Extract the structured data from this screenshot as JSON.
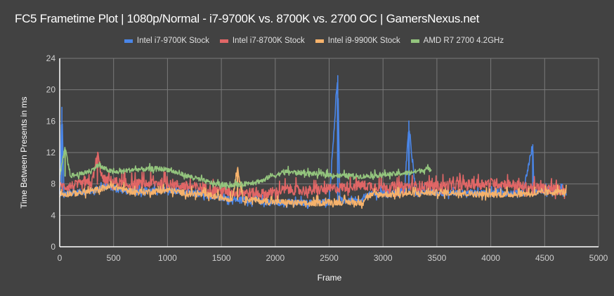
{
  "chart_data": {
    "type": "line",
    "title": "FC5 Frametime Plot | 1080p/Normal - i7-9700K vs. 8700K vs. 2700 OC | GamersNexus.net",
    "xlabel": "Frame",
    "ylabel": "Time Between Presents in ms",
    "xlim": [
      0,
      5000
    ],
    "ylim": [
      0,
      24
    ],
    "xticks": [
      0,
      500,
      1000,
      1500,
      2000,
      2500,
      3000,
      3500,
      4000,
      4500,
      5000
    ],
    "yticks": [
      0,
      4,
      8,
      12,
      16,
      20,
      24
    ],
    "grid": true,
    "legend_position": "top",
    "series": [
      {
        "name": "Intel i7-9700K Stock",
        "color": "#4a86e8",
        "x": [
          0,
          20,
          40,
          100,
          200,
          300,
          350,
          400,
          500,
          600,
          700,
          800,
          900,
          1000,
          1100,
          1200,
          1300,
          1400,
          1500,
          1600,
          1700,
          1800,
          1900,
          2000,
          2100,
          2200,
          2300,
          2400,
          2500,
          2580,
          2600,
          2700,
          2800,
          2850,
          2900,
          3000,
          3100,
          3200,
          3240,
          3300,
          3400,
          3500,
          3600,
          3700,
          3800,
          3900,
          4000,
          4100,
          4200,
          4300,
          4390,
          4400,
          4500,
          4600,
          4700
        ],
        "values": [
          6.5,
          17.5,
          6.5,
          6.8,
          6.9,
          7.0,
          7.4,
          7.6,
          7.5,
          7.0,
          7.0,
          7.1,
          7.0,
          7.2,
          6.9,
          6.7,
          6.6,
          6.4,
          6.2,
          6.0,
          5.9,
          5.8,
          5.6,
          5.5,
          5.6,
          5.5,
          5.5,
          5.6,
          5.7,
          21.8,
          5.8,
          5.7,
          5.7,
          6.5,
          6.6,
          6.7,
          6.8,
          6.9,
          15.6,
          6.9,
          6.9,
          6.8,
          6.8,
          6.8,
          6.8,
          6.8,
          6.8,
          6.8,
          6.8,
          6.9,
          13.0,
          6.9,
          7.0,
          7.0,
          7.0
        ]
      },
      {
        "name": "Intel i7-8700K Stock",
        "color": "#e06666",
        "x": [
          0,
          100,
          200,
          300,
          350,
          400,
          500,
          600,
          700,
          800,
          900,
          1000,
          1100,
          1200,
          1300,
          1400,
          1500,
          1600,
          1700,
          1800,
          1900,
          2000,
          2100,
          2200,
          2300,
          2400,
          2500,
          2600,
          2700,
          2800,
          2900,
          3000,
          3100,
          3200,
          3300,
          3400,
          3500,
          3600,
          3700,
          3800,
          3900,
          4000,
          4100,
          4200,
          4300,
          4400,
          4500,
          4600,
          4700
        ],
        "values": [
          7.5,
          7.6,
          7.8,
          8.0,
          11.6,
          8.4,
          8.2,
          7.8,
          7.8,
          7.9,
          8.0,
          8.0,
          7.7,
          7.5,
          7.4,
          7.2,
          7.0,
          6.8,
          6.8,
          6.7,
          6.6,
          6.8,
          7.2,
          7.1,
          7.0,
          7.1,
          7.2,
          7.4,
          7.6,
          7.7,
          7.6,
          7.5,
          7.5,
          7.5,
          7.6,
          7.6,
          7.6,
          7.7,
          7.8,
          7.8,
          7.9,
          8.0,
          7.9,
          7.8,
          7.5,
          7.4,
          7.3,
          7.2,
          7.1
        ]
      },
      {
        "name": "Intel i9-9900K Stock",
        "color": "#f6b26b",
        "x": [
          0,
          100,
          200,
          300,
          400,
          500,
          600,
          700,
          800,
          900,
          1000,
          1100,
          1200,
          1300,
          1400,
          1500,
          1600,
          1650,
          1700,
          1800,
          1900,
          2000,
          2100,
          2200,
          2300,
          2400,
          2500,
          2600,
          2700,
          2800,
          2850,
          2900,
          3000,
          3100,
          3200,
          3300,
          3400,
          3500,
          3600,
          3700,
          3800,
          3900,
          4000,
          4100,
          4200,
          4300,
          4400,
          4500,
          4600,
          4700
        ],
        "values": [
          6.6,
          6.7,
          6.8,
          7.0,
          7.4,
          7.6,
          7.2,
          6.9,
          6.9,
          7.0,
          7.1,
          6.9,
          6.7,
          6.6,
          6.4,
          6.2,
          6.0,
          10.0,
          6.0,
          5.9,
          5.7,
          5.6,
          5.6,
          5.5,
          5.4,
          5.5,
          5.6,
          5.6,
          5.6,
          5.5,
          6.4,
          6.5,
          6.6,
          6.6,
          6.7,
          6.7,
          6.8,
          6.8,
          6.8,
          6.8,
          6.7,
          6.6,
          6.6,
          6.6,
          6.6,
          6.7,
          6.7,
          6.8,
          6.9,
          6.9
        ]
      },
      {
        "name": "AMD R7 2700 4.2GHz",
        "color": "#93c47d",
        "x": [
          0,
          50,
          100,
          200,
          300,
          350,
          400,
          500,
          600,
          700,
          800,
          900,
          1000,
          1100,
          1200,
          1300,
          1400,
          1500,
          1600,
          1700,
          1800,
          1900,
          1950,
          2000,
          2050,
          2100,
          2200,
          2300,
          2400,
          2500,
          2600,
          2700,
          2800,
          2900,
          3000,
          3100,
          3200,
          3300,
          3400,
          3450
        ],
        "values": [
          9.0,
          12.5,
          9.0,
          9.2,
          9.7,
          10.3,
          10.0,
          9.4,
          9.6,
          9.8,
          9.8,
          9.9,
          9.8,
          9.3,
          8.9,
          8.5,
          8.1,
          7.8,
          7.8,
          7.9,
          8.2,
          8.4,
          9.0,
          9.0,
          9.3,
          9.5,
          9.4,
          9.3,
          9.2,
          9.1,
          9.0,
          9.0,
          8.9,
          9.0,
          9.1,
          9.2,
          9.3,
          9.5,
          9.8,
          9.8
        ]
      }
    ]
  },
  "title": "FC5 Frametime Plot | 1080p/Normal - i7-9700K vs. 8700K vs. 2700 OC | GamersNexus.net",
  "legend": [
    {
      "label": "Intel i7-9700K Stock",
      "color": "#4a86e8"
    },
    {
      "label": "Intel i7-8700K Stock",
      "color": "#e06666"
    },
    {
      "label": "Intel i9-9900K Stock",
      "color": "#f6b26b"
    },
    {
      "label": "AMD R7 2700 4.2GHz",
      "color": "#93c47d"
    }
  ],
  "axes": {
    "xlabel": "Frame",
    "ylabel": "Time Between Presents in ms"
  }
}
